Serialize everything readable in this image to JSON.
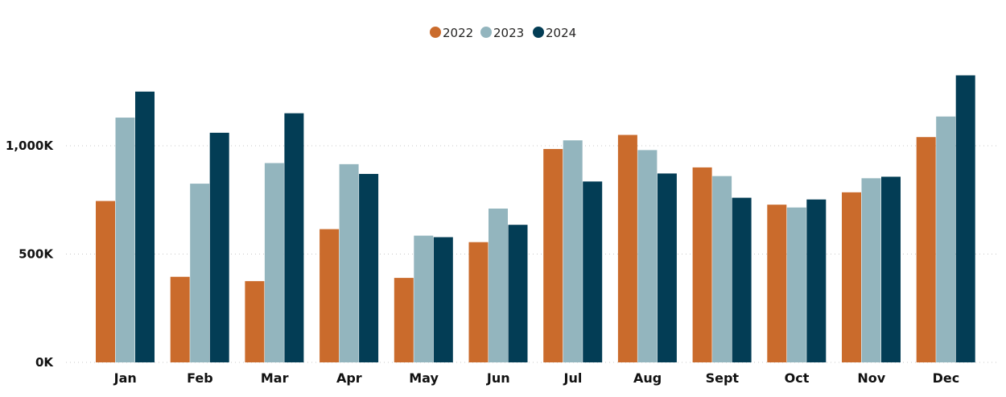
{
  "chart_data": {
    "type": "bar",
    "categories": [
      "Jan",
      "Feb",
      "Mar",
      "Apr",
      "May",
      "Jun",
      "Jul",
      "Aug",
      "Sept",
      "Oct",
      "Nov",
      "Dec"
    ],
    "series": [
      {
        "name": "2022",
        "color": "#CA6B2C",
        "values": [
          745000,
          395000,
          375000,
          615000,
          390000,
          555000,
          985000,
          1050000,
          900000,
          728000,
          785000,
          1040000
        ]
      },
      {
        "name": "2023",
        "color": "#93B5BE",
        "values": [
          1130000,
          825000,
          920000,
          915000,
          585000,
          710000,
          1025000,
          980000,
          860000,
          715000,
          850000,
          1135000
        ]
      },
      {
        "name": "2024",
        "color": "#033D55",
        "values": [
          1250000,
          1060000,
          1150000,
          870000,
          578000,
          635000,
          835000,
          872000,
          760000,
          752000,
          857000,
          1325000
        ]
      }
    ],
    "yticks": [
      {
        "value": 0,
        "label": "0K"
      },
      {
        "value": 500000,
        "label": "500K"
      },
      {
        "value": 1000000,
        "label": "1,000K"
      }
    ],
    "ylim": [
      0,
      1400000
    ],
    "grid": true,
    "legend_position": "top-center",
    "title": "",
    "xlabel": "",
    "ylabel": ""
  }
}
